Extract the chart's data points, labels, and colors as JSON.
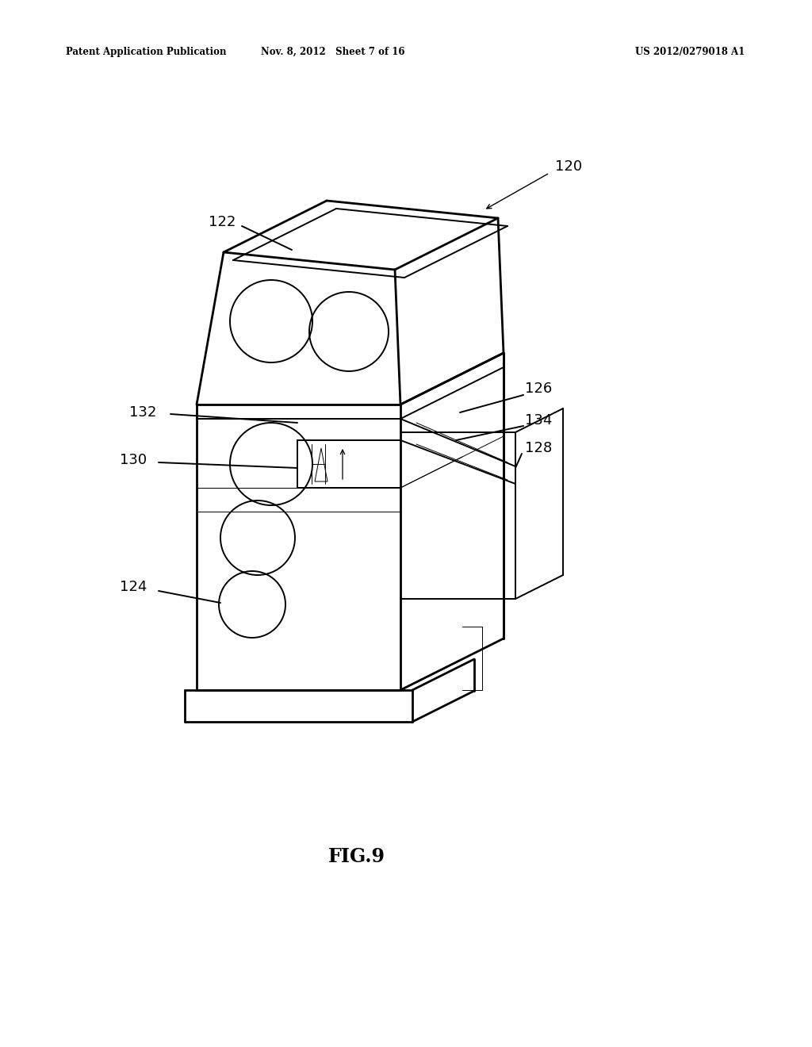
{
  "background_color": "#ffffff",
  "header_left": "Patent Application Publication",
  "header_center": "Nov. 8, 2012   Sheet 7 of 16",
  "header_right": "US 2012/0279018 A1",
  "figure_label": "FIG.9",
  "line_color": "#000000",
  "text_color": "#000000",
  "lw_main": 1.4,
  "lw_thin": 0.7,
  "lw_thick": 2.0
}
